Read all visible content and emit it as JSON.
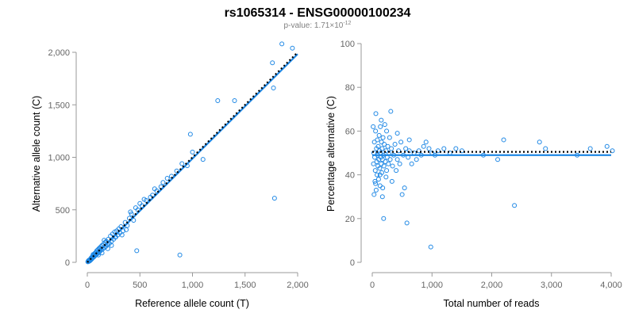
{
  "header": {
    "title": "rs1065314 - ENSG00000100234",
    "subtitle_prefix": "p-value: 1.71×10",
    "subtitle_exponent": "-12"
  },
  "colors": {
    "points": "#1f88e5",
    "fit": "#1f88e5",
    "reference": "#000000",
    "axis": "#999999",
    "tick_text": "#666666"
  },
  "chart_data": [
    {
      "type": "scatter",
      "panel": "left",
      "xlabel": "Reference allele count (T)",
      "ylabel": "Alternative allele count (C)",
      "xlim": [
        0,
        2000
      ],
      "ylim": [
        0,
        2000
      ],
      "x_ticks": [
        0,
        500,
        1000,
        1500,
        2000
      ],
      "x_tick_labels": [
        "0",
        "500",
        "1,000",
        "1,500",
        "2,000"
      ],
      "y_ticks": [
        0,
        500,
        1000,
        1500,
        2000
      ],
      "y_tick_labels": [
        "0",
        "500",
        "1,000",
        "1,500",
        "2,000"
      ],
      "grid": false,
      "points": [
        [
          5,
          5
        ],
        [
          8,
          12
        ],
        [
          12,
          8
        ],
        [
          15,
          20
        ],
        [
          18,
          10
        ],
        [
          22,
          25
        ],
        [
          25,
          18
        ],
        [
          30,
          30
        ],
        [
          32,
          22
        ],
        [
          35,
          40
        ],
        [
          38,
          28
        ],
        [
          40,
          45
        ],
        [
          45,
          35
        ],
        [
          48,
          55
        ],
        [
          50,
          42
        ],
        [
          55,
          60
        ],
        [
          58,
          48
        ],
        [
          60,
          70
        ],
        [
          65,
          55
        ],
        [
          70,
          80
        ],
        [
          72,
          62
        ],
        [
          75,
          90
        ],
        [
          80,
          70
        ],
        [
          85,
          95
        ],
        [
          88,
          75
        ],
        [
          90,
          110
        ],
        [
          95,
          85
        ],
        [
          100,
          120
        ],
        [
          105,
          90
        ],
        [
          110,
          130
        ],
        [
          115,
          100
        ],
        [
          120,
          140
        ],
        [
          125,
          110
        ],
        [
          130,
          150
        ],
        [
          135,
          120
        ],
        [
          140,
          160
        ],
        [
          150,
          130
        ],
        [
          155,
          175
        ],
        [
          160,
          140
        ],
        [
          170,
          190
        ],
        [
          175,
          150
        ],
        [
          180,
          200
        ],
        [
          190,
          170
        ],
        [
          200,
          220
        ],
        [
          210,
          180
        ],
        [
          220,
          250
        ],
        [
          230,
          200
        ],
        [
          240,
          270
        ],
        [
          250,
          220
        ],
        [
          260,
          290
        ],
        [
          270,
          240
        ],
        [
          280,
          300
        ],
        [
          290,
          260
        ],
        [
          300,
          320
        ],
        [
          310,
          280
        ],
        [
          320,
          340
        ],
        [
          340,
          300
        ],
        [
          360,
          380
        ],
        [
          380,
          350
        ],
        [
          400,
          420
        ],
        [
          410,
          480
        ],
        [
          420,
          460
        ],
        [
          440,
          400
        ],
        [
          460,
          520
        ],
        [
          470,
          110
        ],
        [
          480,
          500
        ],
        [
          500,
          560
        ],
        [
          520,
          540
        ],
        [
          540,
          600
        ],
        [
          560,
          590
        ],
        [
          600,
          620
        ],
        [
          620,
          640
        ],
        [
          640,
          700
        ],
        [
          660,
          680
        ],
        [
          700,
          720
        ],
        [
          720,
          760
        ],
        [
          760,
          800
        ],
        [
          800,
          820
        ],
        [
          850,
          870
        ],
        [
          880,
          70
        ],
        [
          900,
          940
        ],
        [
          950,
          920
        ],
        [
          980,
          1220
        ],
        [
          1000,
          1050
        ],
        [
          1100,
          980
        ],
        [
          1240,
          1540
        ],
        [
          1400,
          1540
        ],
        [
          1760,
          1900
        ],
        [
          1770,
          1660
        ],
        [
          1780,
          610
        ],
        [
          1850,
          2080
        ],
        [
          1950,
          2040
        ],
        [
          25,
          15
        ],
        [
          55,
          75
        ],
        [
          105,
          70
        ],
        [
          140,
          90
        ],
        [
          160,
          210
        ],
        [
          195,
          130
        ],
        [
          230,
          160
        ],
        [
          265,
          240
        ],
        [
          330,
          260
        ],
        [
          370,
          310
        ]
      ],
      "fit_line": {
        "label": "fit",
        "slope": 0.995,
        "intercept": -7
      },
      "reference_line": {
        "label": "y = x",
        "slope": 1.0,
        "intercept": 0
      }
    },
    {
      "type": "scatter",
      "panel": "right",
      "xlabel": "Total number of reads",
      "ylabel": "Percentage alternative (C)",
      "xlim": [
        0,
        4000
      ],
      "ylim": [
        0,
        100
      ],
      "x_ticks": [
        0,
        1000,
        2000,
        3000,
        4000
      ],
      "x_tick_labels": [
        "0",
        "1,000",
        "2,000",
        "3,000",
        "4,000"
      ],
      "y_ticks": [
        0,
        20,
        40,
        60,
        80,
        100
      ],
      "y_tick_labels": [
        "0",
        "20",
        "40",
        "60",
        "80",
        "100"
      ],
      "grid": false,
      "points": [
        [
          20,
          45
        ],
        [
          25,
          50
        ],
        [
          30,
          31
        ],
        [
          35,
          55
        ],
        [
          40,
          48
        ],
        [
          45,
          37
        ],
        [
          50,
          42
        ],
        [
          55,
          60
        ],
        [
          60,
          68
        ],
        [
          65,
          33
        ],
        [
          70,
          52
        ],
        [
          75,
          46
        ],
        [
          80,
          40
        ],
        [
          85,
          56
        ],
        [
          90,
          49
        ],
        [
          95,
          44
        ],
        [
          100,
          53
        ],
        [
          105,
          38
        ],
        [
          110,
          47
        ],
        [
          115,
          58
        ],
        [
          120,
          51
        ],
        [
          125,
          43
        ],
        [
          130,
          35
        ],
        [
          135,
          62
        ],
        [
          140,
          50
        ],
        [
          145,
          48
        ],
        [
          150,
          45
        ],
        [
          155,
          55
        ],
        [
          160,
          41
        ],
        [
          165,
          52
        ],
        [
          170,
          47
        ],
        [
          175,
          34
        ],
        [
          180,
          57
        ],
        [
          185,
          49
        ],
        [
          190,
          20
        ],
        [
          195,
          44
        ],
        [
          200,
          54
        ],
        [
          210,
          63
        ],
        [
          220,
          46
        ],
        [
          230,
          51
        ],
        [
          240,
          42
        ],
        [
          250,
          48
        ],
        [
          260,
          53
        ],
        [
          270,
          45
        ],
        [
          280,
          50
        ],
        [
          290,
          57
        ],
        [
          300,
          47
        ],
        [
          310,
          69
        ],
        [
          320,
          52
        ],
        [
          340,
          44
        ],
        [
          360,
          49
        ],
        [
          380,
          54
        ],
        [
          400,
          42
        ],
        [
          420,
          47
        ],
        [
          440,
          51
        ],
        [
          460,
          45
        ],
        [
          480,
          55
        ],
        [
          500,
          31
        ],
        [
          520,
          49
        ],
        [
          540,
          34
        ],
        [
          560,
          52
        ],
        [
          580,
          18
        ],
        [
          600,
          48
        ],
        [
          620,
          56
        ],
        [
          660,
          45
        ],
        [
          700,
          50
        ],
        [
          740,
          47
        ],
        [
          780,
          51
        ],
        [
          820,
          49
        ],
        [
          860,
          53
        ],
        [
          900,
          55
        ],
        [
          950,
          52
        ],
        [
          980,
          7
        ],
        [
          1000,
          50
        ],
        [
          1050,
          49
        ],
        [
          1100,
          51
        ],
        [
          1200,
          52
        ],
        [
          1300,
          50
        ],
        [
          1400,
          52
        ],
        [
          1500,
          51
        ],
        [
          1860,
          49
        ],
        [
          2100,
          47
        ],
        [
          2200,
          56
        ],
        [
          2380,
          26
        ],
        [
          2800,
          55
        ],
        [
          2900,
          52
        ],
        [
          3430,
          49
        ],
        [
          3650,
          52
        ],
        [
          3930,
          53
        ],
        [
          4020,
          51
        ],
        [
          15,
          62
        ],
        [
          55,
          36
        ],
        [
          130,
          40
        ],
        [
          170,
          30
        ],
        [
          240,
          60
        ],
        [
          330,
          37
        ],
        [
          420,
          59
        ],
        [
          620,
          51
        ],
        [
          150,
          65
        ],
        [
          230,
          39
        ]
      ],
      "fit_line": {
        "label": "fit",
        "y": 49
      },
      "reference_line": {
        "label": "50%",
        "y": 50.5
      }
    }
  ]
}
